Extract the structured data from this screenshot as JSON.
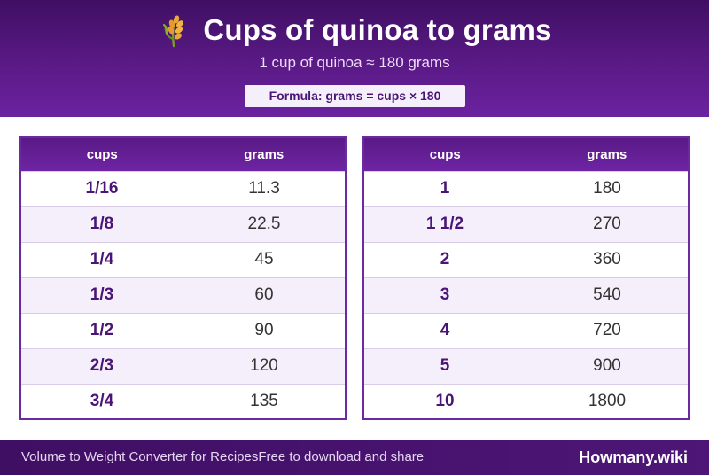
{
  "header": {
    "title": "Cups of quinoa to grams",
    "icon": "wheat-icon",
    "subtitle": "1 cup of quinoa ≈ 180 grams",
    "formula": "Formula: grams = cups × 180"
  },
  "tables": {
    "left": {
      "headers": [
        "cups",
        "grams"
      ],
      "rows": [
        {
          "cups": "1/16",
          "grams": "11.3"
        },
        {
          "cups": "1/8",
          "grams": "22.5"
        },
        {
          "cups": "1/4",
          "grams": "45"
        },
        {
          "cups": "1/3",
          "grams": "60"
        },
        {
          "cups": "1/2",
          "grams": "90"
        },
        {
          "cups": "2/3",
          "grams": "120"
        },
        {
          "cups": "3/4",
          "grams": "135"
        }
      ]
    },
    "right": {
      "headers": [
        "cups",
        "grams"
      ],
      "rows": [
        {
          "cups": "1",
          "grams": "180"
        },
        {
          "cups": "1 1/2",
          "grams": "270"
        },
        {
          "cups": "2",
          "grams": "360"
        },
        {
          "cups": "3",
          "grams": "540"
        },
        {
          "cups": "4",
          "grams": "720"
        },
        {
          "cups": "5",
          "grams": "900"
        },
        {
          "cups": "10",
          "grams": "1800"
        }
      ]
    }
  },
  "footer": {
    "left_text_1": "Volume to Weight Converter for Recipes",
    "left_text_2": "Free to download and share",
    "brand": "Howmany.wiki"
  },
  "colors": {
    "header_purple": "#5a1a86",
    "accent_text": "#4a1576",
    "alt_row": "#f4effa"
  }
}
